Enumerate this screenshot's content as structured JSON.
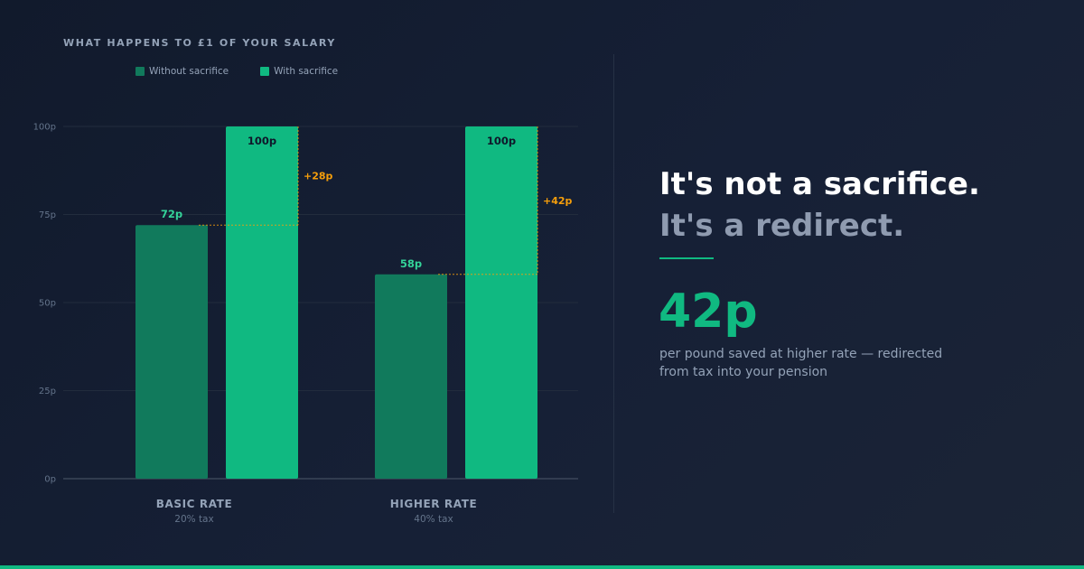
{
  "chart_data": {
    "type": "bar",
    "title": "WHAT HAPPENS TO £1 OF YOUR SALARY",
    "categories": [
      "BASIC RATE",
      "HIGHER RATE"
    ],
    "category_sublabels": [
      "20% tax",
      "40% tax"
    ],
    "series": [
      {
        "name": "Without sacrifice",
        "values": [
          72,
          58
        ],
        "labels": [
          "72p",
          "58p"
        ],
        "color": "#117a5c",
        "label_color": "#34d399"
      },
      {
        "name": "With sacrifice",
        "values": [
          100,
          100
        ],
        "labels": [
          "100p",
          "100p"
        ],
        "color": "#10b981",
        "label_color": "#0f172a"
      }
    ],
    "differences": [
      "+28p",
      "+42p"
    ],
    "difference_color": "#f59e0b",
    "yticks": [
      0,
      25,
      50,
      75,
      100
    ],
    "ytick_labels": [
      "0p",
      "25p",
      "50p",
      "75p",
      "100p"
    ],
    "ylim": [
      0,
      100
    ],
    "xlabel": "",
    "ylabel": "",
    "grid": true,
    "legend": "top-left"
  },
  "message": {
    "headline": "It's not a sacrifice.",
    "subhead": "It's a redirect.",
    "big_number": "42p",
    "caption": "per pound saved at higher rate — redirected from tax into your pension"
  },
  "colors": {
    "accent": "#10b981",
    "muted_text": "#94a3b8"
  }
}
